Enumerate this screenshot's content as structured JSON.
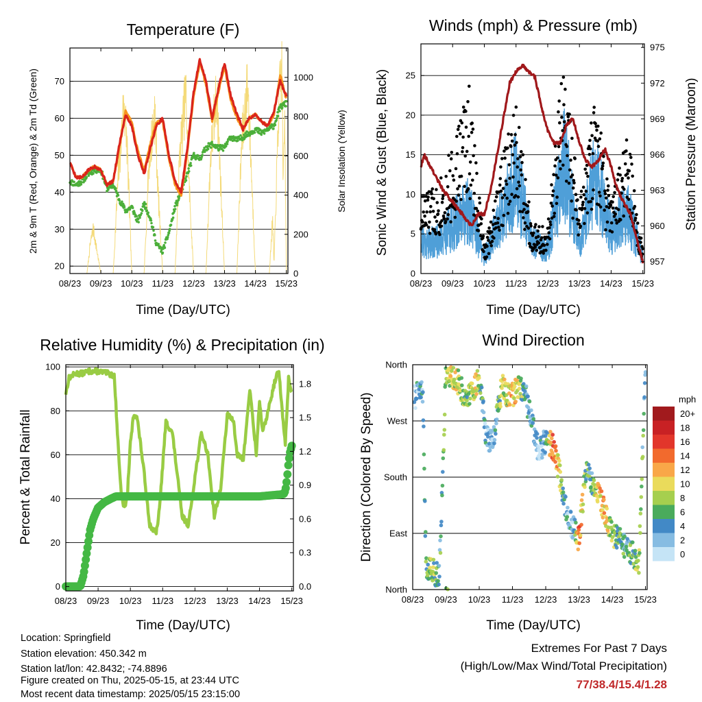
{
  "info": {
    "location": "Location: Springfield",
    "elevation": "Station elevation: 450.342 m",
    "latlon": "Station lat/lon: 42.8432; -74.8896",
    "created": "Figure created on Thu, 2025-05-15, at 23:44 UTC",
    "recent": "Most recent data timestamp: 2025/05/15 23:15:00"
  },
  "extremes": {
    "line1": "Extremes For Past 7 Days",
    "line2": "(High/Low/Max Wind/Total Precipitation)",
    "values": "77/38.4/15.4/1.28"
  },
  "colors": {
    "temp_9m": "#d9241c",
    "temp_2m": "#f7941d",
    "dewpoint": "#4caf3a",
    "solar": "#f3d66a",
    "wind": "#4f9fd8",
    "gust": "#000000",
    "pressure": "#a0181b",
    "rh": "#99cc44",
    "precip": "#44b844"
  },
  "x_ticks": [
    "08/23",
    "09/23",
    "10/23",
    "11/23",
    "12/23",
    "13/23",
    "14/23",
    "15/23"
  ],
  "chart_data": [
    {
      "id": "temperature",
      "type": "line",
      "title": "Temperature (F)",
      "xlabel": "Time (Day/UTC)",
      "ylabel": "2m & 9m T (Red, Orange) & 2m Td (Green)",
      "ylabel_right": "Solar Insolation (Yellow)",
      "xlim": [
        8,
        15.05
      ],
      "ylim": [
        18,
        79
      ],
      "ylim_right": [
        0,
        1150
      ],
      "yticks": [
        20,
        30,
        40,
        50,
        60,
        70
      ],
      "yticks_right": [
        0,
        200,
        400,
        600,
        800,
        1000
      ],
      "grid": true,
      "series": [
        {
          "x": [
            8.0,
            8.2,
            8.4,
            8.6,
            8.8,
            9.0,
            9.2,
            9.4,
            9.6,
            9.8,
            10.0,
            10.2,
            10.4,
            10.6,
            10.8,
            11.0,
            11.2,
            11.4,
            11.6,
            11.8,
            12.0,
            12.2,
            12.4,
            12.6,
            12.8,
            13.0,
            13.2,
            13.4,
            13.6,
            13.8,
            14.0,
            14.2,
            14.4,
            14.6,
            14.8,
            15.0
          ],
          "values": [
            48,
            44,
            44,
            46,
            47,
            46,
            42,
            43,
            53,
            61,
            58,
            50,
            45,
            52,
            58,
            60,
            50,
            43,
            40,
            52,
            67,
            76,
            70,
            60,
            68,
            75,
            66,
            61,
            57,
            60,
            61,
            59,
            58,
            62,
            70,
            66
          ]
        },
        {
          "x": [
            8.0,
            8.2,
            8.4,
            8.6,
            8.8,
            9.0,
            9.2,
            9.4,
            9.6,
            9.8,
            10.0,
            10.2,
            10.4,
            10.6,
            10.8,
            11.0,
            11.2,
            11.4,
            11.6,
            11.8,
            12.0,
            12.2,
            12.4,
            12.6,
            12.8,
            13.0,
            13.2,
            13.4,
            13.6,
            13.8,
            14.0,
            14.2,
            14.4,
            14.6,
            14.8,
            15.0
          ],
          "values": [
            48,
            44,
            44,
            46,
            47,
            46,
            42,
            43,
            52,
            62,
            59,
            51,
            46,
            53,
            59,
            59,
            49,
            42,
            39,
            51,
            66,
            75,
            69,
            59,
            67,
            74,
            65,
            60,
            57,
            60,
            61,
            59,
            58,
            61,
            72,
            65
          ]
        },
        {
          "x": [
            8.0,
            8.2,
            8.4,
            8.6,
            8.8,
            9.0,
            9.2,
            9.4,
            9.6,
            9.8,
            10.0,
            10.2,
            10.4,
            10.6,
            10.8,
            11.0,
            11.2,
            11.4,
            11.6,
            11.8,
            12.0,
            12.2,
            12.4,
            12.6,
            12.8,
            13.0,
            13.2,
            13.4,
            13.6,
            13.8,
            14.0,
            14.2,
            14.4,
            14.6,
            14.8,
            15.0
          ],
          "values": [
            43,
            42,
            43,
            45,
            46,
            46,
            41,
            42,
            38,
            35,
            36,
            32,
            37,
            33,
            26,
            24,
            29,
            36,
            40,
            45,
            50,
            49,
            52,
            53,
            52,
            52,
            55,
            54,
            55,
            56,
            57,
            56,
            57,
            58,
            63,
            64
          ]
        },
        {
          "x": [
            8.0,
            8.4,
            8.55,
            8.65,
            8.75,
            9.0,
            9.3,
            9.4,
            9.55,
            9.75,
            9.85,
            10.0,
            10.2,
            10.4,
            10.55,
            10.75,
            10.85,
            11.0,
            11.2,
            11.4,
            11.55,
            11.75,
            11.85,
            12.0,
            12.3,
            12.4,
            12.55,
            12.75,
            12.85,
            13.0,
            13.3,
            13.4,
            13.55,
            13.75,
            13.85,
            14.0,
            14.3,
            14.45,
            14.55,
            14.6,
            14.75,
            14.85,
            14.9,
            14.95,
            15.0
          ],
          "values": [
            0,
            0,
            0,
            150,
            250,
            0,
            0,
            0,
            500,
            950,
            700,
            0,
            0,
            0,
            600,
            900,
            450,
            0,
            0,
            0,
            650,
            1000,
            500,
            0,
            0,
            0,
            650,
            1000,
            600,
            0,
            0,
            0,
            700,
            1050,
            650,
            0,
            0,
            0,
            300,
            50,
            900,
            1150,
            500,
            900,
            0
          ]
        }
      ]
    },
    {
      "id": "winds",
      "type": "scatter",
      "title": "Winds (mph) & Pressure (mb)",
      "xlabel": "Time (Day/UTC)",
      "ylabel": "Sonic Wind & Gust (Blue, Black)",
      "ylabel_right": "Station Pressure (Maroon)",
      "xlim": [
        8,
        15.05
      ],
      "ylim": [
        0,
        29
      ],
      "ylim_right": [
        956,
        975.3
      ],
      "yticks": [
        0,
        5,
        10,
        15,
        20,
        25
      ],
      "yticks_right": [
        957,
        960,
        963,
        966,
        969,
        972,
        975
      ],
      "grid": true,
      "series": [
        {
          "x": [
            8.0,
            8.5,
            9.0,
            9.5,
            10.0,
            10.5,
            11.0,
            11.5,
            12.0,
            12.5,
            13.0,
            13.5,
            14.0,
            14.5,
            15.0
          ],
          "values": [
            4,
            4,
            6,
            8,
            2,
            7,
            12,
            4,
            3,
            14,
            4,
            12,
            5,
            8,
            2
          ]
        },
        {
          "x": [
            8.0,
            8.5,
            9.0,
            9.5,
            10.0,
            10.5,
            11.0,
            11.5,
            12.0,
            12.5,
            13.0,
            13.5,
            14.0,
            14.5,
            15.0
          ],
          "values": [
            9,
            10,
            14,
            22,
            3,
            12,
            19,
            6,
            5,
            25,
            8,
            20,
            8,
            16,
            3
          ]
        },
        {
          "x": [
            8.0,
            8.1,
            8.3,
            8.5,
            8.7,
            9.0,
            9.3,
            9.6,
            9.8,
            10.0,
            10.2,
            10.4,
            10.6,
            10.8,
            11.0,
            11.2,
            11.4,
            11.6,
            11.8,
            12.0,
            12.2,
            12.4,
            12.6,
            12.8,
            13.0,
            13.2,
            13.4,
            13.6,
            13.8,
            14.0,
            14.2,
            14.4,
            14.6,
            14.8,
            15.0
          ],
          "values": [
            965,
            966,
            965,
            964,
            963,
            962,
            961,
            960,
            961,
            961,
            963,
            966,
            969,
            972,
            973,
            973.5,
            973,
            972.5,
            970,
            968,
            967,
            967,
            968.5,
            969,
            967,
            965.5,
            965,
            965.5,
            966.5,
            965,
            963,
            962,
            961,
            959,
            957
          ]
        }
      ]
    },
    {
      "id": "humidity",
      "type": "line",
      "title": "Relative Humidity (%) & Precipitation (in)",
      "xlabel": "Time (Day/UTC)",
      "ylabel": "Percent & Total Rainfall",
      "xlim": [
        8,
        15.05
      ],
      "ylim": [
        -2,
        101
      ],
      "ylim_right": [
        -0.04,
        1.97
      ],
      "yticks": [
        0,
        20,
        40,
        60,
        80,
        100
      ],
      "yticks_right": [
        "0.0",
        "0.3",
        "0.6",
        "0.9",
        "1.2",
        "1.5",
        "1.8"
      ],
      "grid": true,
      "series": [
        {
          "x": [
            8.0,
            8.1,
            8.3,
            8.5,
            8.7,
            9.0,
            9.3,
            9.5,
            9.6,
            9.7,
            9.8,
            9.9,
            10.0,
            10.1,
            10.2,
            10.4,
            10.6,
            10.8,
            10.9,
            11.0,
            11.1,
            11.3,
            11.5,
            11.6,
            11.8,
            12.0,
            12.2,
            12.4,
            12.6,
            12.8,
            13.0,
            13.2,
            13.3,
            13.5,
            13.7,
            13.9,
            14.0,
            14.1,
            14.3,
            14.5,
            14.6,
            14.7,
            14.8,
            14.9,
            15.0
          ],
          "values": [
            88,
            95,
            97,
            97,
            98,
            98,
            97,
            96,
            70,
            45,
            36,
            40,
            65,
            78,
            78,
            55,
            28,
            24,
            35,
            55,
            75,
            70,
            45,
            32,
            28,
            50,
            70,
            60,
            32,
            45,
            78,
            76,
            60,
            58,
            90,
            60,
            85,
            70,
            82,
            95,
            98,
            80,
            65,
            95,
            88
          ]
        },
        {
          "x": [
            8.0,
            8.45,
            8.55,
            8.65,
            8.75,
            8.85,
            9.0,
            9.2,
            9.4,
            9.55,
            10.0,
            11.0,
            12.0,
            13.0,
            14.0,
            14.75,
            14.8,
            14.85,
            14.9,
            14.95,
            15.0
          ],
          "values": [
            0,
            0,
            0.1,
            0.3,
            0.5,
            0.6,
            0.7,
            0.75,
            0.78,
            0.8,
            0.8,
            0.8,
            0.8,
            0.8,
            0.8,
            0.82,
            0.85,
            0.95,
            1.1,
            1.2,
            1.25
          ]
        }
      ]
    },
    {
      "id": "direction",
      "type": "scatter",
      "title": "Wind Direction",
      "xlabel": "Time (Day/UTC)",
      "ylabel": "Direction (Colored By Speed)",
      "xlim": [
        8,
        15.05
      ],
      "ylim": [
        0,
        360
      ],
      "yticks": [
        "North",
        "East",
        "South",
        "West",
        "North"
      ],
      "grid": true,
      "legend": {
        "title": "mph",
        "labels": [
          "20+",
          "18",
          "16",
          "14",
          "12",
          "10",
          "8",
          "6",
          "4",
          "2",
          "0"
        ],
        "colors": [
          "#a11a1d",
          "#c82124",
          "#e2362b",
          "#f26a2d",
          "#f9a748",
          "#eadb5b",
          "#a6cf4e",
          "#4aab5c",
          "#4289c6",
          "#86bce2",
          "#c5e4f6"
        ]
      },
      "series": [
        {
          "x": [
            8.1,
            8.2,
            8.3,
            8.4,
            8.6,
            8.7,
            8.8,
            9.0,
            9.2,
            9.4,
            9.6,
            9.8,
            10.0,
            10.2,
            10.4,
            10.6,
            10.7,
            10.8,
            11.0,
            11.2,
            11.4,
            11.6,
            11.8,
            12.0,
            12.2,
            12.4,
            12.6,
            12.8,
            13.0,
            13.2,
            13.4,
            13.6,
            13.8,
            14.0,
            14.2,
            14.4,
            14.6,
            14.8,
            15.0
          ],
          "values": [
            310,
            315,
            320,
            40,
            30,
            25,
            20,
            350,
            340,
            330,
            300,
            320,
            340,
            250,
            230,
            300,
            330,
            310,
            310,
            325,
            310,
            260,
            220,
            240,
            230,
            190,
            130,
            100,
            80,
            190,
            170,
            150,
            120,
            90,
            80,
            70,
            60,
            40,
            350
          ],
          "speeds": [
            2,
            4,
            3,
            6,
            8,
            6,
            4,
            8,
            10,
            8,
            6,
            10,
            8,
            3,
            2,
            6,
            10,
            8,
            12,
            8,
            4,
            3,
            2,
            4,
            14,
            10,
            4,
            2,
            14,
            6,
            4,
            12,
            10,
            8,
            6,
            4,
            6,
            8,
            3
          ]
        }
      ]
    }
  ]
}
